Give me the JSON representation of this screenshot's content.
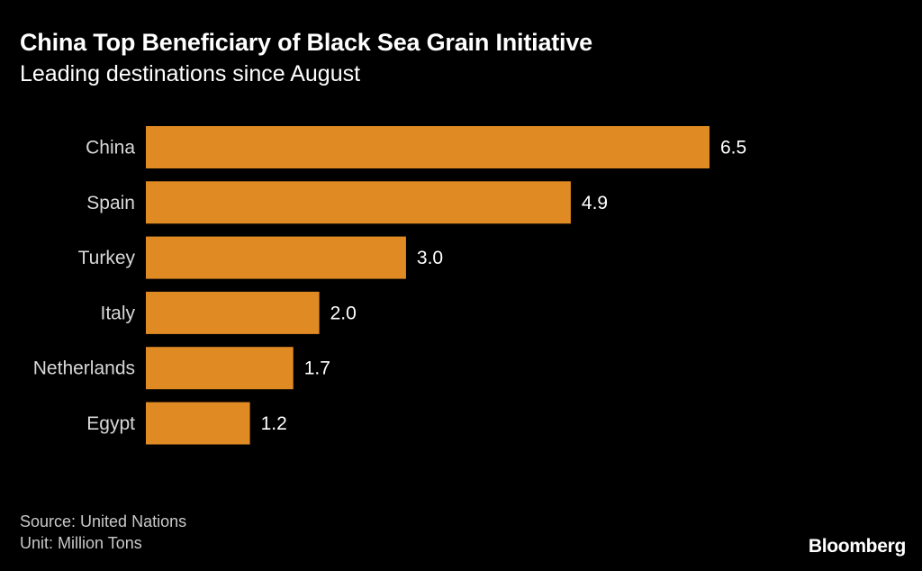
{
  "header": {
    "title": "China Top Beneficiary of Black Sea Grain Initiative",
    "subtitle": "Leading destinations since August"
  },
  "footer": {
    "source": "Source: United Nations",
    "unit": "Unit: Million Tons",
    "brand": "Bloomberg"
  },
  "colors": {
    "bar": "#E08A24",
    "background": "#000000",
    "text": "#FFFFFF"
  },
  "chart_data": {
    "type": "bar",
    "orientation": "horizontal",
    "title": "China Top Beneficiary of Black Sea Grain Initiative",
    "subtitle": "Leading destinations since August",
    "categories": [
      "China",
      "Spain",
      "Turkey",
      "Italy",
      "Netherlands",
      "Egypt"
    ],
    "values": [
      6.5,
      4.9,
      3.0,
      2.0,
      1.7,
      1.2
    ],
    "value_labels": [
      "6.5",
      "4.9",
      "3.0",
      "2.0",
      "1.7",
      "1.2"
    ],
    "xlim": [
      0,
      6.5
    ],
    "grid": false,
    "legend": "none"
  }
}
